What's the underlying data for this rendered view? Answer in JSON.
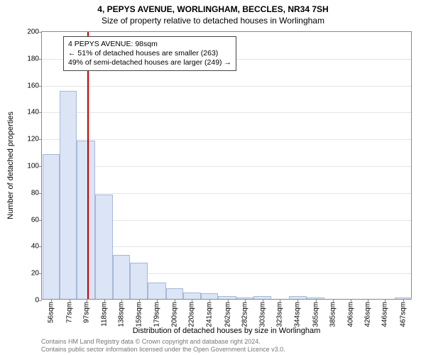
{
  "header": {
    "title": "4, PEPYS AVENUE, WORLINGHAM, BECCLES, NR34 7SH",
    "subtitle": "Size of property relative to detached houses in Worlingham"
  },
  "chart": {
    "type": "histogram",
    "ylim": [
      0,
      200
    ],
    "ytick_step": 20,
    "yticks": [
      0,
      20,
      40,
      60,
      80,
      100,
      120,
      140,
      160,
      180,
      200
    ],
    "xlim": [
      45,
      478
    ],
    "xticks": [
      56,
      77,
      97,
      118,
      138,
      159,
      179,
      200,
      220,
      241,
      262,
      282,
      303,
      323,
      344,
      365,
      385,
      406,
      426,
      446,
      467
    ],
    "xtick_unit": "sqm",
    "grid_color": "#e5e5e5",
    "border_color": "#888888",
    "bar_fill": "#dbe5f6",
    "bar_stroke": "#a6b8d8",
    "bars": [
      {
        "x0": 46,
        "x1": 66,
        "y": 108
      },
      {
        "x0": 66,
        "x1": 86,
        "y": 155
      },
      {
        "x0": 86,
        "x1": 107,
        "y": 118
      },
      {
        "x0": 107,
        "x1": 128,
        "y": 78
      },
      {
        "x0": 128,
        "x1": 148,
        "y": 33
      },
      {
        "x0": 148,
        "x1": 169,
        "y": 27
      },
      {
        "x0": 169,
        "x1": 190,
        "y": 12
      },
      {
        "x0": 190,
        "x1": 210,
        "y": 8
      },
      {
        "x0": 210,
        "x1": 231,
        "y": 5
      },
      {
        "x0": 231,
        "x1": 251,
        "y": 4
      },
      {
        "x0": 251,
        "x1": 272,
        "y": 2
      },
      {
        "x0": 272,
        "x1": 292,
        "y": 1
      },
      {
        "x0": 292,
        "x1": 313,
        "y": 2
      },
      {
        "x0": 313,
        "x1": 334,
        "y": 0
      },
      {
        "x0": 334,
        "x1": 354,
        "y": 2
      },
      {
        "x0": 354,
        "x1": 375,
        "y": 1
      },
      {
        "x0": 375,
        "x1": 395,
        "y": 0
      },
      {
        "x0": 395,
        "x1": 416,
        "y": 0
      },
      {
        "x0": 416,
        "x1": 436,
        "y": 0
      },
      {
        "x0": 436,
        "x1": 457,
        "y": 0
      },
      {
        "x0": 457,
        "x1": 477,
        "y": 1
      }
    ],
    "marker": {
      "x": 98,
      "color": "#c00000"
    },
    "annotation": {
      "line1": "4 PEPYS AVENUE: 98sqm",
      "line2": "← 51% of detached houses are smaller (263)",
      "line3": "49% of semi-detached houses are larger (249) →"
    },
    "ylabel": "Number of detached properties",
    "xlabel": "Distribution of detached houses by size in Worlingham"
  },
  "footnote": {
    "line1": "Contains HM Land Registry data © Crown copyright and database right 2024.",
    "line2": "Contains public sector information licensed under the Open Government Licence v3.0."
  }
}
